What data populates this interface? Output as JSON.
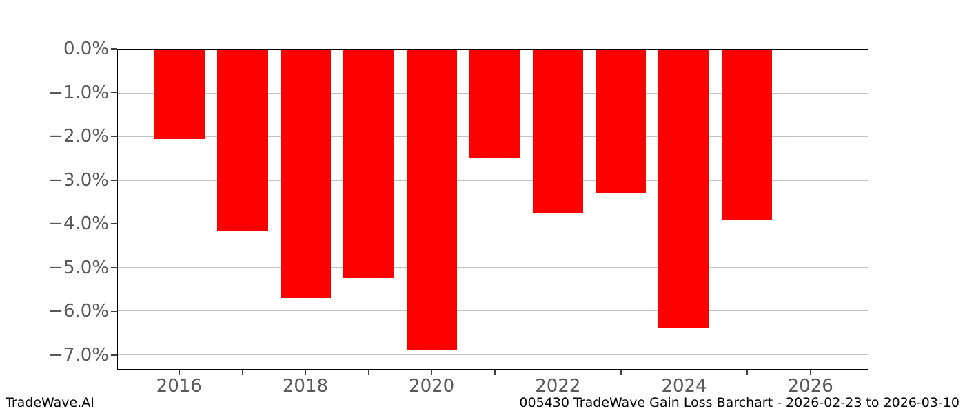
{
  "chart_data": {
    "type": "bar",
    "categories": [
      "2016",
      "2017",
      "2018",
      "2019",
      "2020",
      "2021",
      "2022",
      "2023",
      "2024",
      "2025"
    ],
    "values": [
      -2.05,
      -4.15,
      -5.7,
      -5.25,
      -6.9,
      -2.5,
      -3.75,
      -3.3,
      -6.4,
      -3.9
    ],
    "value_unit": "%",
    "title": "",
    "xlabel": "",
    "ylabel": "",
    "xlim": [
      2015.02,
      2026.92
    ],
    "ylim": [
      -7.33,
      0
    ],
    "bar_width_years": 0.8,
    "grid": "horizontal",
    "legend": null,
    "y_ticks": [
      {
        "value": 0,
        "label": "0.0%"
      },
      {
        "value": -1,
        "label": "−1.0%"
      },
      {
        "value": -2,
        "label": "−2.0%"
      },
      {
        "value": -3,
        "label": "−3.0%"
      },
      {
        "value": -4,
        "label": "−4.0%"
      },
      {
        "value": -5,
        "label": "−5.0%"
      },
      {
        "value": -6,
        "label": "−6.0%"
      },
      {
        "value": -7,
        "label": "−7.0%"
      }
    ],
    "x_ticks": [
      {
        "value": 2016,
        "label": "2016"
      },
      {
        "value": 2017,
        "label": ""
      },
      {
        "value": 2018,
        "label": "2018"
      },
      {
        "value": 2019,
        "label": ""
      },
      {
        "value": 2020,
        "label": "2020"
      },
      {
        "value": 2021,
        "label": ""
      },
      {
        "value": 2022,
        "label": "2022"
      },
      {
        "value": 2023,
        "label": ""
      },
      {
        "value": 2024,
        "label": "2024"
      },
      {
        "value": 2025,
        "label": ""
      },
      {
        "value": 2026,
        "label": "2026"
      }
    ]
  },
  "colors": {
    "bar": "#ff0000",
    "grid": "#c3c3c3",
    "spine": "#000000",
    "tick_label": "#595959",
    "footer_text": "#000000",
    "background": "#ffffff"
  },
  "footer": {
    "left": "TradeWave.AI",
    "right": "005430 TradeWave Gain Loss Barchart - 2026-02-23 to 2026-03-10"
  }
}
